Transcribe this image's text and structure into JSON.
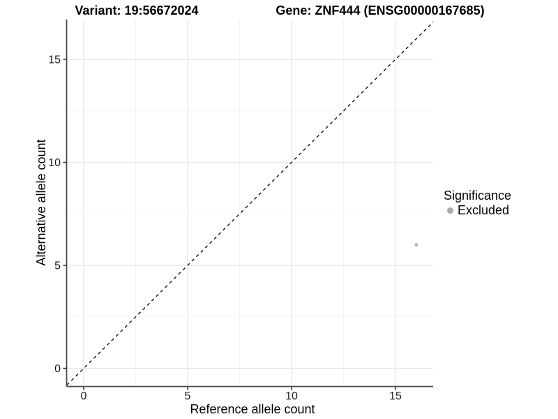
{
  "titles": {
    "left": "Variant: 19:56672024",
    "right": "Gene: ZNF444 (ENSG00000167685)"
  },
  "chart_data": {
    "type": "scatter",
    "xlabel": "Reference allele count",
    "ylabel": "Alternative allele count",
    "x_ticks": [
      0,
      5,
      10,
      15
    ],
    "y_ticks": [
      0,
      5,
      10,
      15
    ],
    "x_minor_ticks": [
      2.5,
      7.5,
      12.5
    ],
    "y_minor_ticks": [
      2.5,
      7.5,
      12.5
    ],
    "xlim": [
      -0.82,
      16.81
    ],
    "ylim": [
      -0.88,
      16.93
    ],
    "grid": true,
    "identity_line": {
      "equation": "y = x",
      "style": "dashed",
      "color": "#000000"
    },
    "series": [
      {
        "name": "Excluded",
        "color": "#b5b5b5",
        "points": [
          {
            "x": 16,
            "y": 6
          }
        ]
      }
    ],
    "legend": {
      "title": "Significance",
      "position": "right",
      "items": [
        {
          "label": "Excluded",
          "color": "#ababab"
        }
      ]
    },
    "colors": {
      "axis_line": "#4a4a4a",
      "tick_mark": "#333333",
      "grid_major": "#e8e8e8",
      "grid_minor": "#f3f3f3",
      "tick_label": "#1a1a1a"
    }
  }
}
